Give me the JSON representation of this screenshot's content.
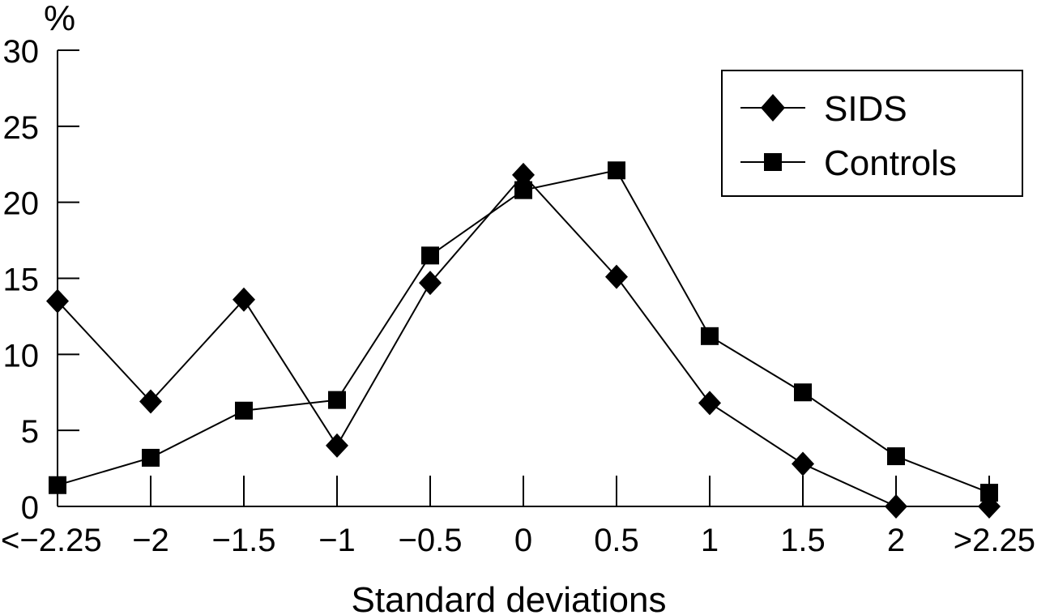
{
  "chart_data": {
    "type": "line",
    "title": "",
    "xlabel": "Standard deviations",
    "ylabel": "%",
    "categories": [
      "<−2.25",
      "−2",
      "−1.5",
      "−1",
      "−0.5",
      "0",
      "0.5",
      "1",
      "1.5",
      "2",
      ">2.25"
    ],
    "y_ticks": [
      "0",
      "5",
      "10",
      "15",
      "20",
      "25",
      "30"
    ],
    "ylim": [
      0,
      30
    ],
    "grid": false,
    "legend_position": "top-right",
    "series": [
      {
        "name": "SIDS",
        "marker": "diamond",
        "values": [
          13.5,
          6.9,
          13.6,
          4.0,
          14.7,
          21.8,
          15.1,
          6.8,
          2.8,
          0.0,
          0.0
        ]
      },
      {
        "name": "Controls",
        "marker": "square",
        "values": [
          1.4,
          3.2,
          6.3,
          7.0,
          16.5,
          20.8,
          22.1,
          11.2,
          7.5,
          3.3,
          0.9
        ]
      }
    ]
  }
}
